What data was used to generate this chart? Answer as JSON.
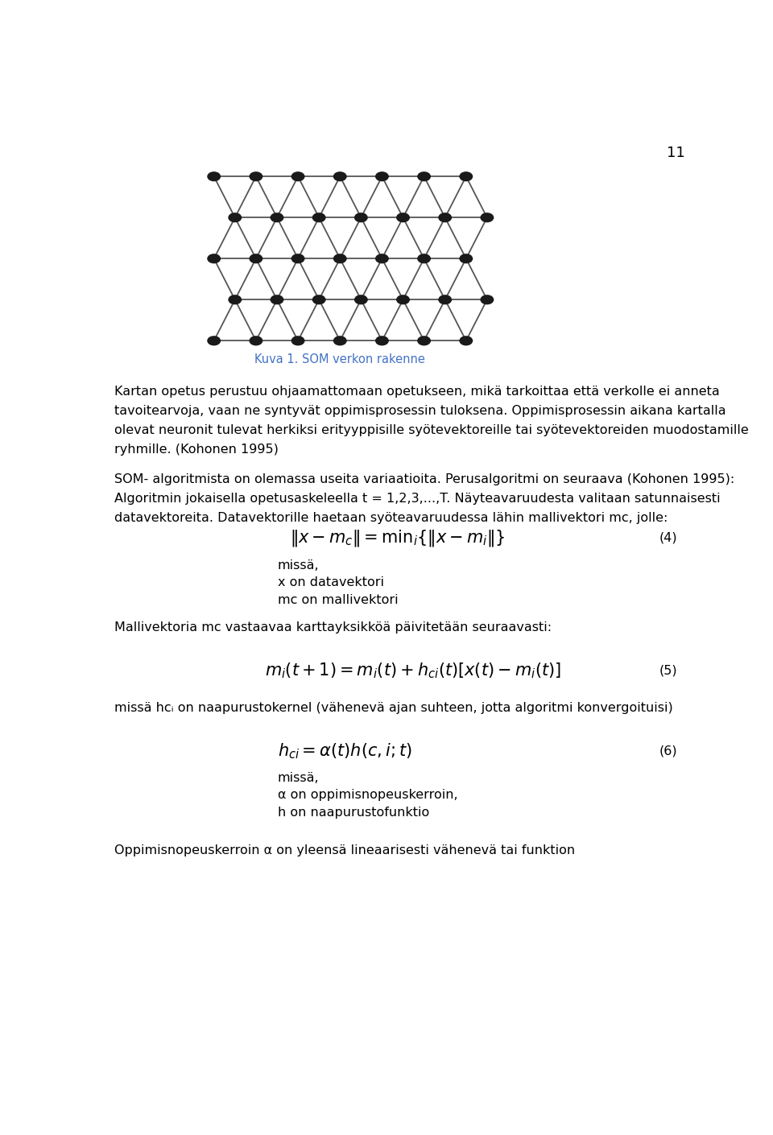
{
  "page_number": "11",
  "figure_caption": "Kuva 1. SOM verkon rakenne",
  "figure_caption_color": "#4472C4",
  "grid_rows": 5,
  "grid_cols": 7,
  "node_color": "#1a1a1a",
  "line_color": "#555555",
  "background_color": "#ffffff",
  "eq4_label": "(4)",
  "eq5_label": "(5)",
  "eq6_label": "(6)"
}
